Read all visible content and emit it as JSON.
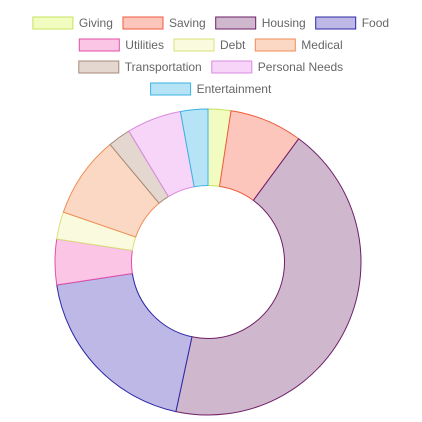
{
  "chart_data": {
    "type": "doughnut",
    "title": "",
    "legend_position": "top",
    "categories": [
      "Giving",
      "Saving",
      "Housing",
      "Food",
      "Utilities",
      "Debt",
      "Medical",
      "Transportation",
      "Personal Needs",
      "Entertainment"
    ],
    "values": [
      2.5,
      8,
      45,
      20,
      5,
      3,
      9,
      2.5,
      6,
      3
    ],
    "units": "",
    "inner_radius_ratio": 0.5,
    "colors": {
      "Giving": {
        "fill": "#f3fcc0",
        "stroke": "#c5e35e"
      },
      "Saving": {
        "fill": "#fdc6bd",
        "stroke": "#ef5a3c"
      },
      "Housing": {
        "fill": "#cfb7cd",
        "stroke": "#6e1e68"
      },
      "Food": {
        "fill": "#bdb8e6",
        "stroke": "#2c28a4"
      },
      "Utilities": {
        "fill": "#fbc6e6",
        "stroke": "#e54fa7"
      },
      "Debt": {
        "fill": "#fafbde",
        "stroke": "#d9e07a"
      },
      "Medical": {
        "fill": "#fbd8c4",
        "stroke": "#f18b55"
      },
      "Transportation": {
        "fill": "#e3d7cf",
        "stroke": "#a58a7a"
      },
      "Personal Needs": {
        "fill": "#f6d5f8",
        "stroke": "#da8be0"
      },
      "Entertainment": {
        "fill": "#b6e4f6",
        "stroke": "#3ab3e3"
      }
    }
  }
}
